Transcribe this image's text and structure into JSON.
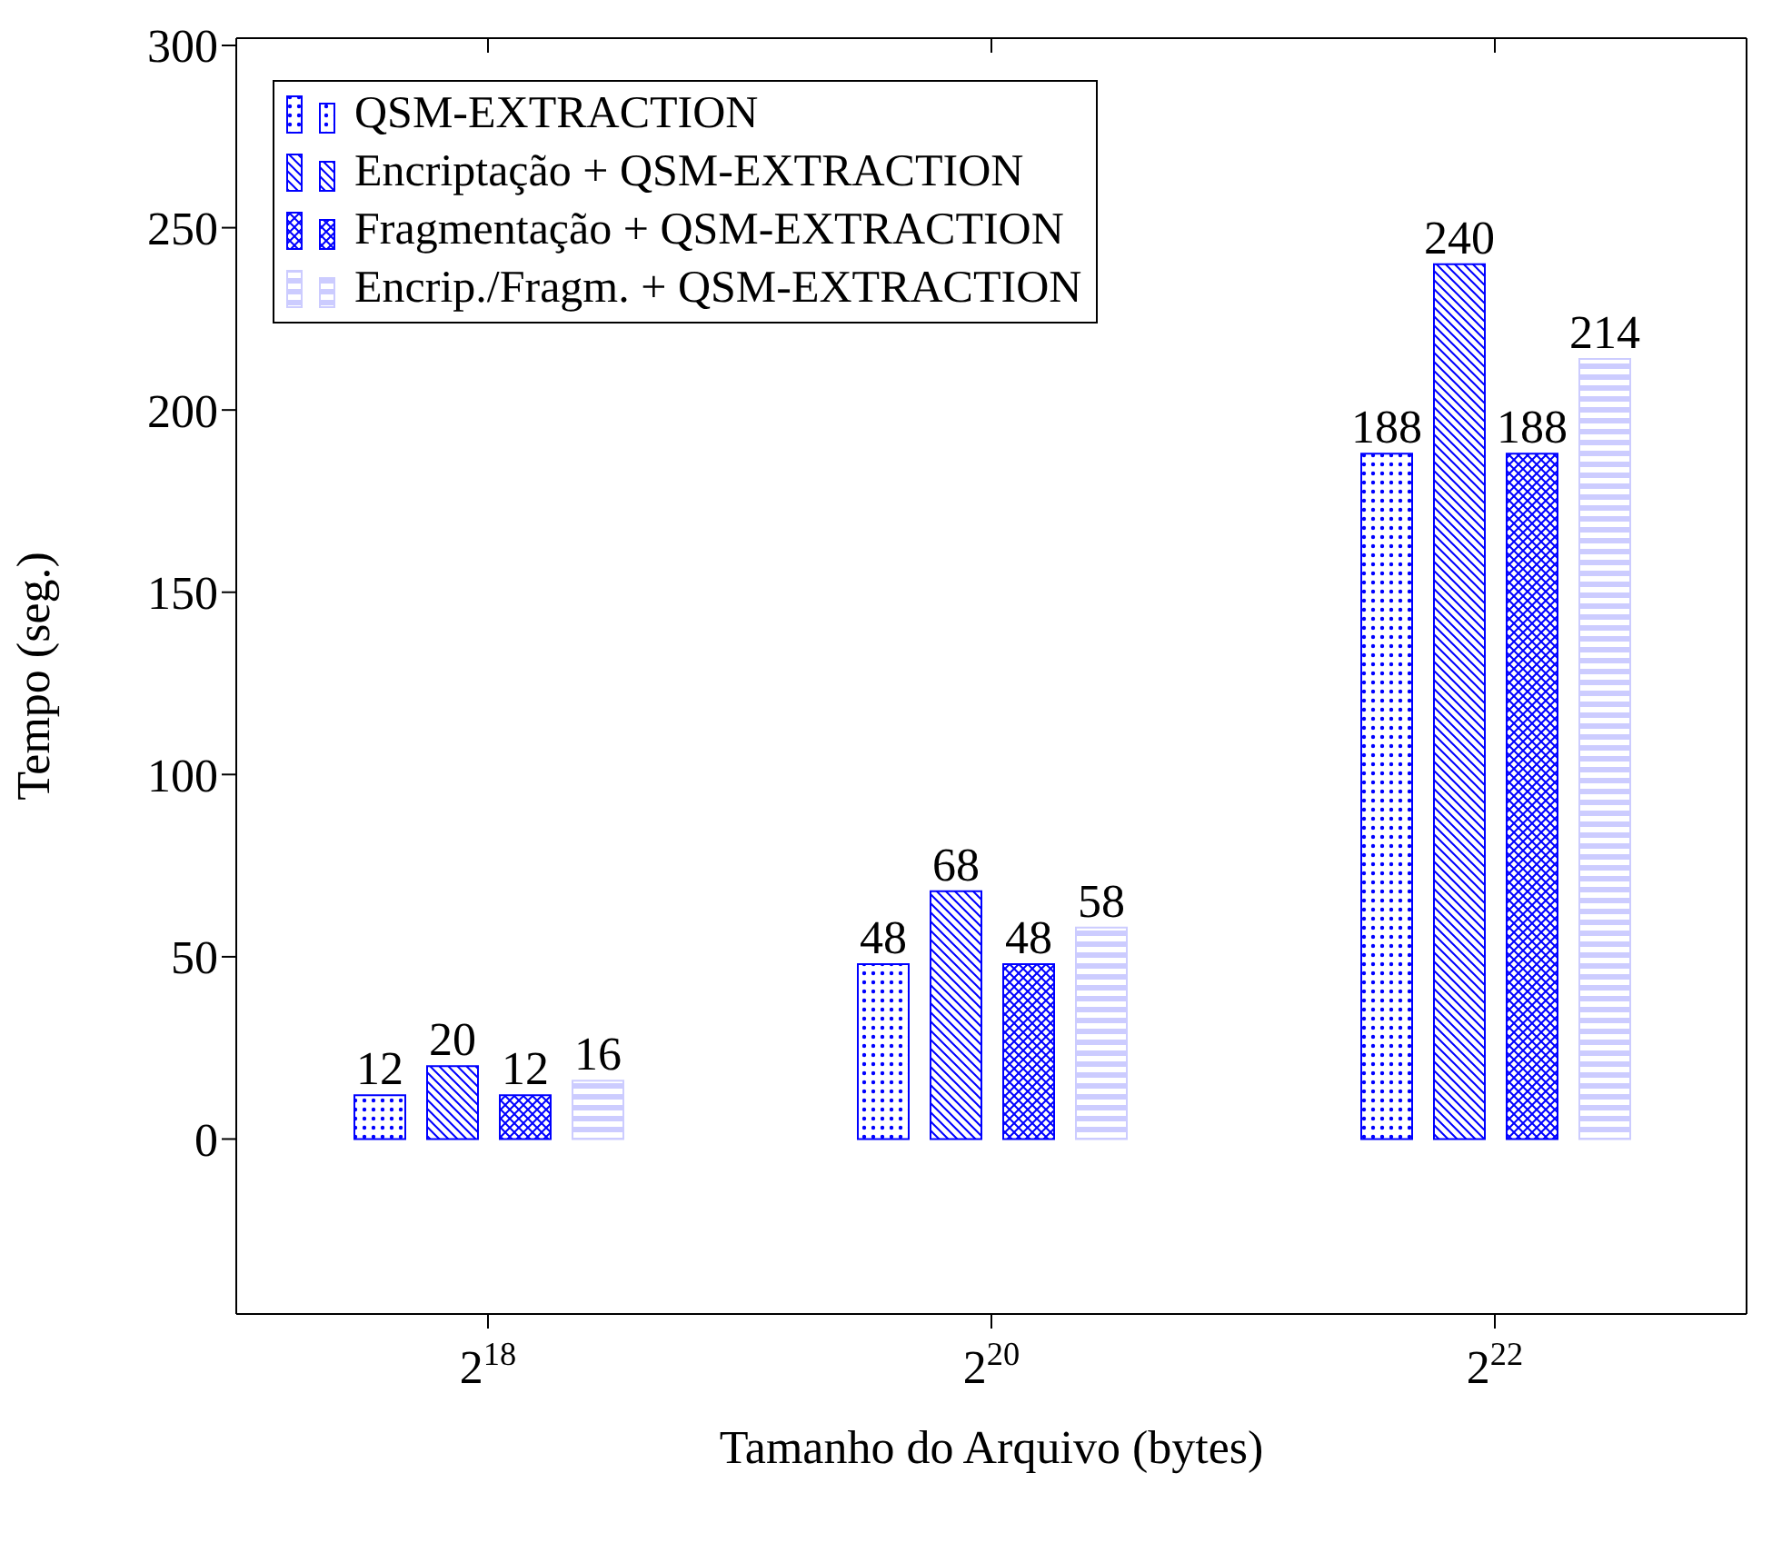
{
  "chart_data": {
    "type": "bar",
    "xlabel": "Tamanho do Arquivo (bytes)",
    "ylabel": "Tempo (seg.)",
    "categories": [
      "2$^{18}$",
      "2$^{20}$",
      "2$^{22}$"
    ],
    "series": [
      {
        "name": "QSM-EXTRACTION",
        "color": "#0000ff",
        "values": [
          12,
          48,
          188
        ]
      },
      {
        "name": "Encriptação + QSM-EXTRACTION",
        "color": "#0000ff",
        "values": [
          20,
          68,
          240
        ]
      },
      {
        "name": "Fragmentação + QSM-EXTRACTION",
        "color": "#0000ff",
        "values": [
          12,
          48,
          188
        ]
      },
      {
        "name": "Encrip./Fragm. + QSM-EXTRACTION",
        "color": "#ccccff",
        "values": [
          16,
          58,
          214
        ]
      }
    ],
    "ylim": [
      -48,
      302
    ],
    "yticks": [
      0,
      50,
      100,
      150,
      200,
      250,
      300
    ],
    "grid": false,
    "legend": "top left",
    "data_labels": true
  }
}
